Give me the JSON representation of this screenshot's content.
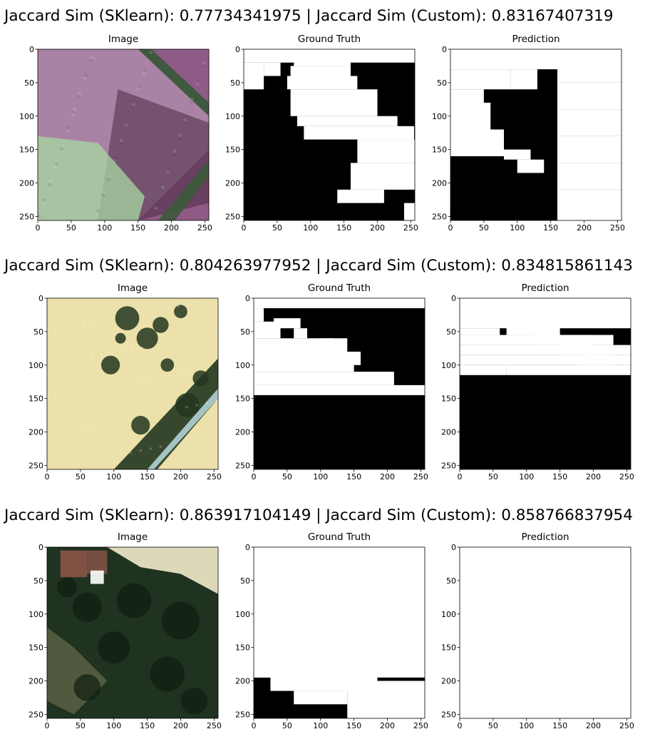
{
  "rows": [
    {
      "title": "Jaccard Sim (SKlearn): 0.77734341975 | Jaccard Sim (Custom): 0.83167407319",
      "panels": [
        {
          "title": "Image",
          "kind": "image",
          "scene": "purple-field",
          "colors": {
            "base": "#8e5a86",
            "dark": "#4a2a45",
            "light": "#c9b6cc",
            "green": "#a8d8a2",
            "stripe": "#3a5a3a"
          }
        },
        {
          "title": "Ground Truth",
          "kind": "mask"
        },
        {
          "title": "Prediction",
          "kind": "mask"
        }
      ]
    },
    {
      "title": "Jaccard Sim (SKlearn): 0.804263977952 | Jaccard Sim (Custom): 0.834815861143",
      "panels": [
        {
          "title": "Image",
          "kind": "image",
          "scene": "yellow-field-trees",
          "colors": {
            "base": "#ece1ab",
            "tree": "#23361f",
            "road": "#a4c4c4"
          }
        },
        {
          "title": "Ground Truth",
          "kind": "mask"
        },
        {
          "title": "Prediction",
          "kind": "mask"
        }
      ]
    },
    {
      "title": "Jaccard Sim (SKlearn): 0.863917104149 | Jaccard Sim (Custom): 0.858766837954",
      "panels": [
        {
          "title": "Image",
          "kind": "image",
          "scene": "dark-forest",
          "colors": {
            "base": "#1f3320",
            "light": "#e9e2c4",
            "roof": "#8a5548"
          }
        },
        {
          "title": "Ground Truth",
          "kind": "mask"
        },
        {
          "title": "Prediction",
          "kind": "mask"
        }
      ]
    }
  ],
  "chart_data": {
    "type": "heatmap",
    "xlim": [
      0,
      256
    ],
    "ylim": [
      256,
      0
    ],
    "xticks": [
      "0",
      "50",
      "100",
      "150",
      "200",
      "250"
    ],
    "yticks": [
      "0",
      "50",
      "100",
      "150",
      "200",
      "250"
    ],
    "mask_colors": {
      "foreground": "#ffffff",
      "background": "#000000"
    },
    "masks": {
      "r0_gt": [
        [
          0,
          0,
          20,
          256
        ],
        [
          20,
          0,
          60,
          30
        ],
        [
          20,
          30,
          40,
          55
        ],
        [
          0,
          80,
          10,
          160
        ],
        [
          10,
          75,
          25,
          160
        ],
        [
          25,
          70,
          40,
          160
        ],
        [
          40,
          65,
          60,
          170
        ],
        [
          60,
          70,
          100,
          200
        ],
        [
          100,
          80,
          115,
          230
        ],
        [
          115,
          90,
          135,
          255
        ],
        [
          135,
          170,
          170,
          256
        ],
        [
          170,
          160,
          210,
          256
        ],
        [
          210,
          140,
          230,
          210
        ],
        [
          230,
          240,
          256,
          256
        ]
      ],
      "r0_pr": [
        [
          0,
          0,
          30,
          256
        ],
        [
          30,
          0,
          60,
          90
        ],
        [
          30,
          90,
          60,
          130
        ],
        [
          60,
          0,
          80,
          50
        ],
        [
          80,
          0,
          120,
          60
        ],
        [
          120,
          0,
          160,
          80
        ],
        [
          0,
          160,
          50,
          256
        ],
        [
          50,
          160,
          90,
          256
        ],
        [
          90,
          160,
          130,
          256
        ],
        [
          130,
          160,
          170,
          256
        ],
        [
          170,
          160,
          210,
          256
        ],
        [
          210,
          160,
          256,
          256
        ],
        [
          150,
          80,
          165,
          120
        ],
        [
          165,
          100,
          185,
          140
        ]
      ],
      "r1_gt": [
        [
          0,
          0,
          15,
          256
        ],
        [
          15,
          0,
          35,
          15
        ],
        [
          35,
          0,
          60,
          40
        ],
        [
          60,
          0,
          80,
          120
        ],
        [
          80,
          0,
          110,
          150
        ],
        [
          110,
          0,
          130,
          210
        ],
        [
          130,
          0,
          145,
          256
        ],
        [
          20,
          10,
          30,
          15
        ],
        [
          30,
          30,
          45,
          70
        ],
        [
          45,
          60,
          60,
          80
        ],
        [
          60,
          100,
          80,
          140
        ],
        [
          80,
          130,
          100,
          160
        ]
      ],
      "r1_pr": [
        [
          0,
          0,
          45,
          256
        ],
        [
          45,
          0,
          55,
          60
        ],
        [
          55,
          0,
          70,
          230
        ],
        [
          70,
          0,
          85,
          256
        ],
        [
          85,
          0,
          100,
          256
        ],
        [
          100,
          0,
          115,
          70
        ],
        [
          100,
          70,
          115,
          256
        ],
        [
          40,
          70,
          55,
          150
        ],
        [
          55,
          110,
          70,
          200
        ],
        [
          70,
          150,
          85,
          200
        ],
        [
          85,
          180,
          100,
          230
        ]
      ],
      "r2_gt": [
        [
          0,
          0,
          195,
          256
        ],
        [
          195,
          0,
          256,
          0
        ],
        [
          140,
          0,
          195,
          25
        ],
        [
          155,
          25,
          215,
          185
        ],
        [
          215,
          60,
          235,
          140
        ],
        [
          200,
          140,
          256,
          256
        ]
      ],
      "r2_pr": [
        [
          0,
          0,
          256,
          256
        ],
        [
          130,
          0,
          256,
          35
        ],
        [
          160,
          35,
          240,
          55
        ],
        [
          200,
          55,
          256,
          135
        ],
        [
          240,
          135,
          256,
          256
        ]
      ]
    }
  }
}
